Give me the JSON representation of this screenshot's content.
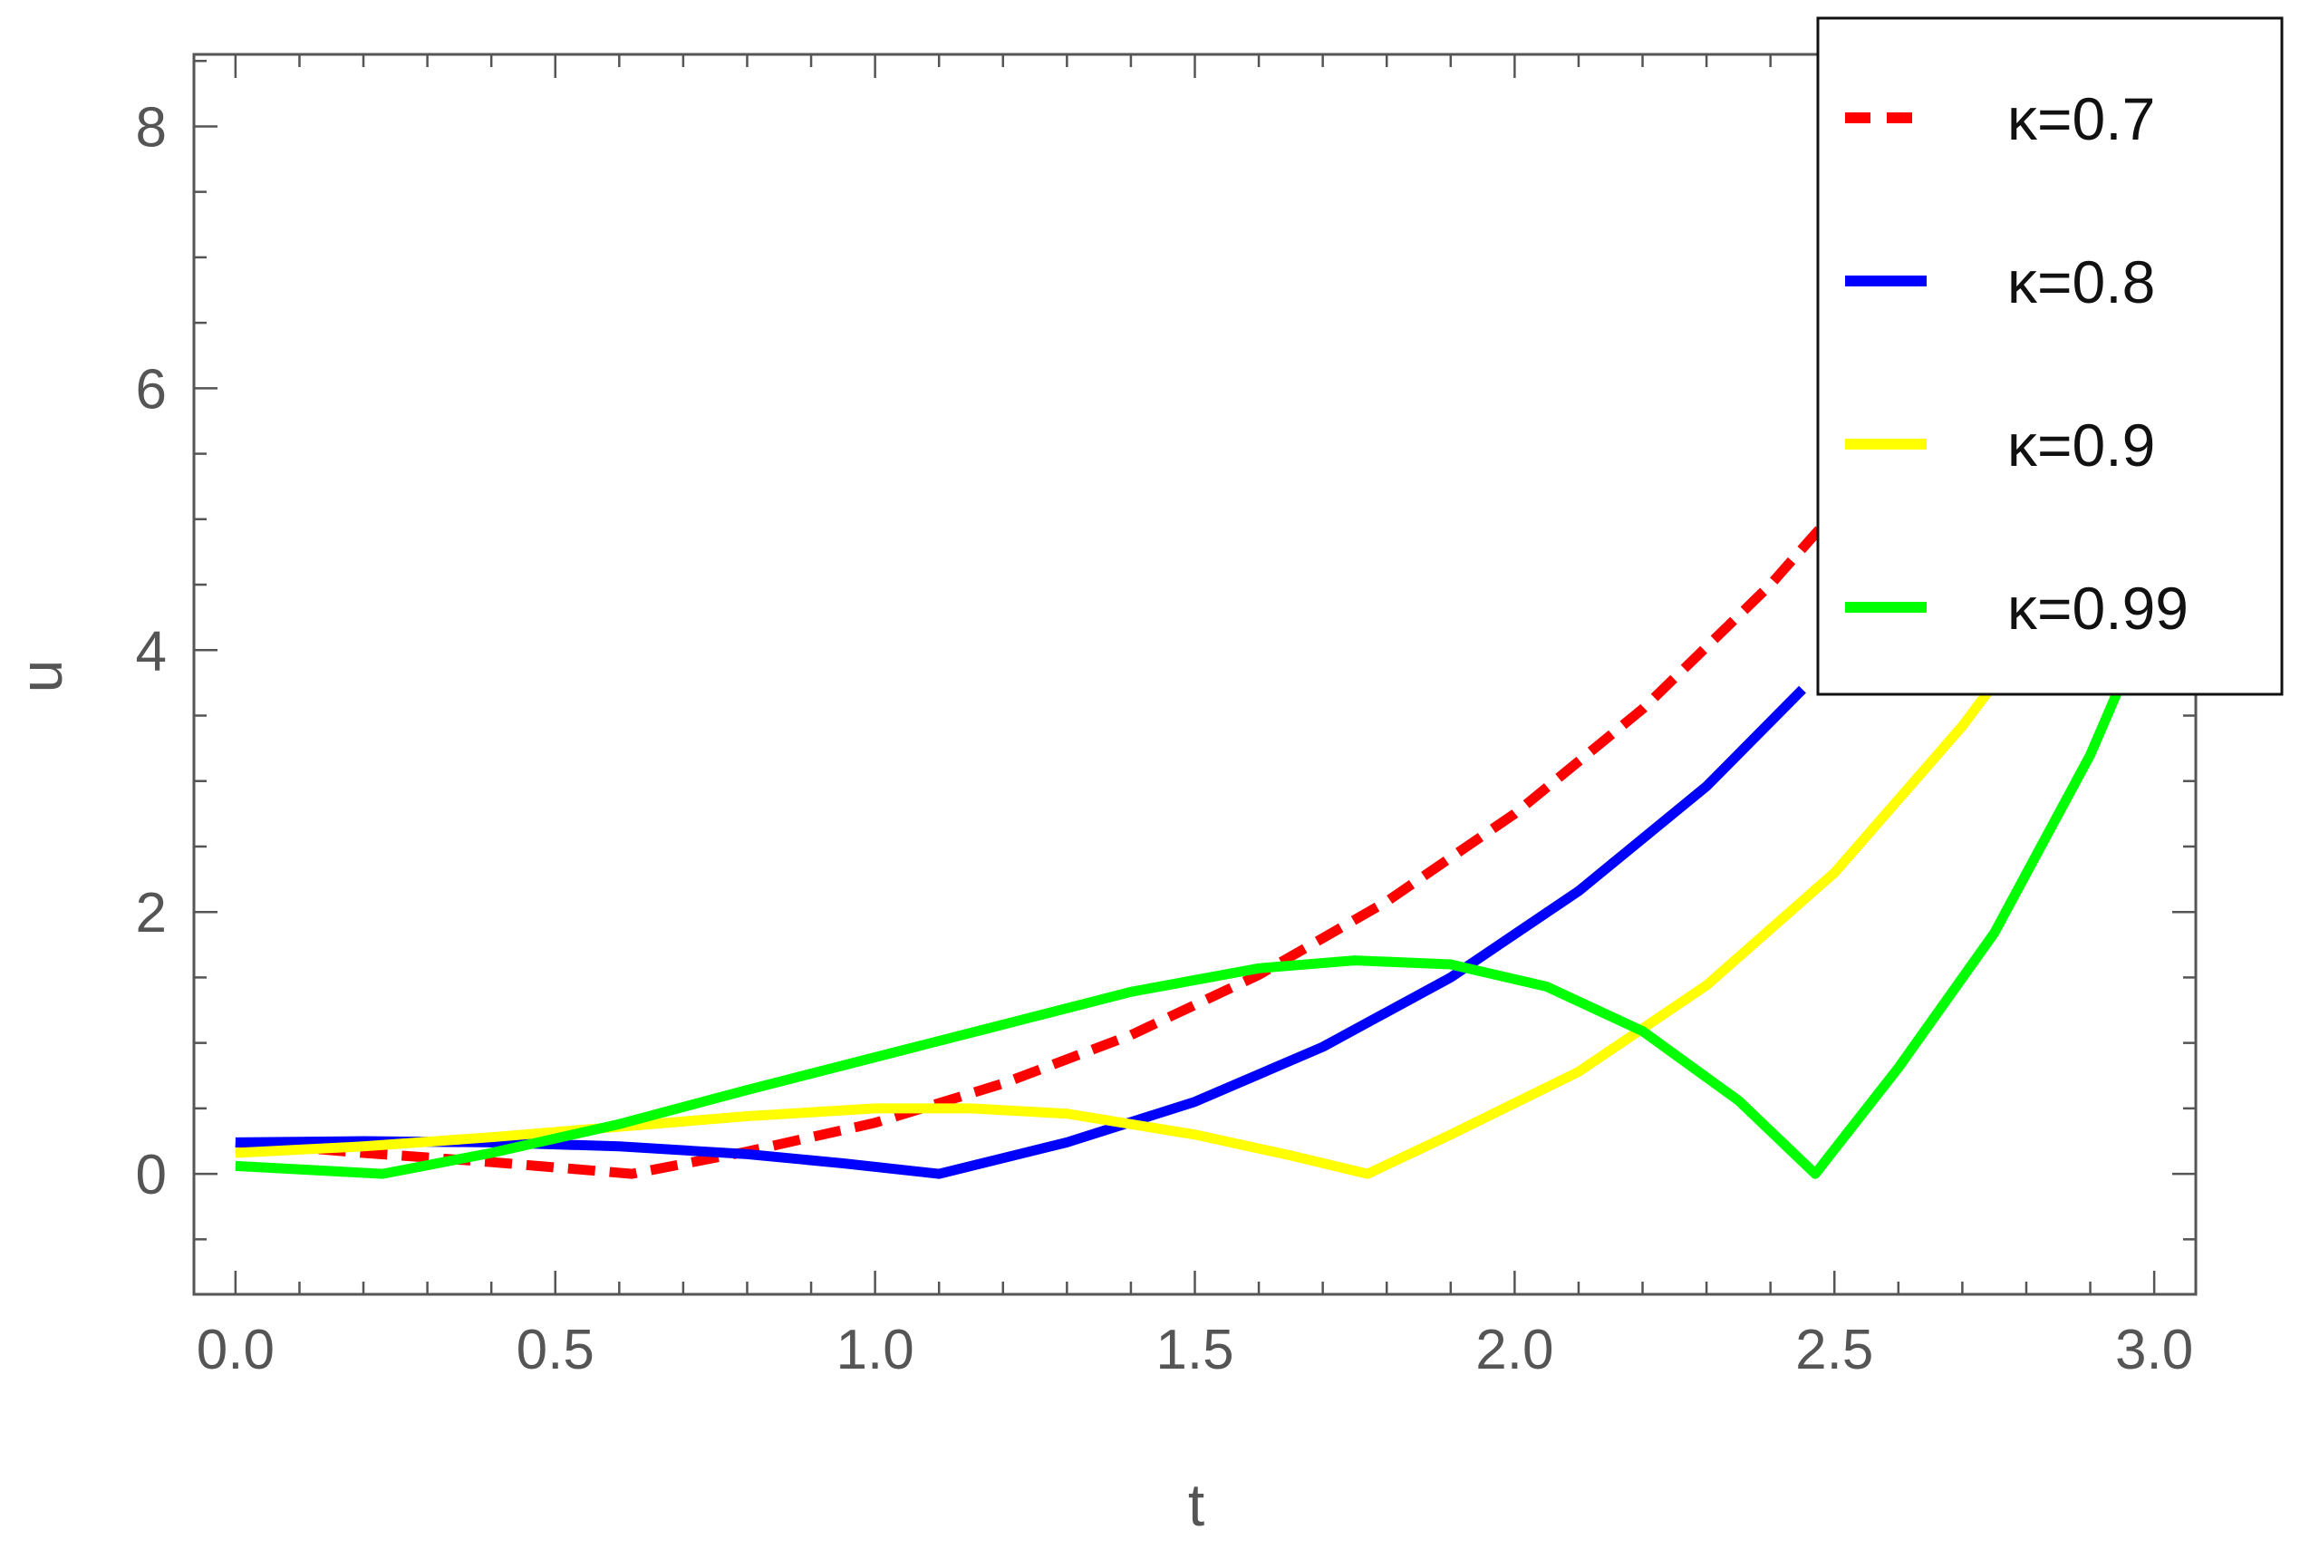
{
  "chart_data": {
    "type": "line",
    "xlabel": "t",
    "ylabel": "u",
    "xlim": [
      -0.065,
      3.065
    ],
    "ylim": [
      -0.92,
      8.55
    ],
    "x_ticks": [
      0.0,
      0.5,
      1.0,
      1.5,
      2.0,
      2.5,
      3.0
    ],
    "x_tick_labels": [
      "0.0",
      "0.5",
      "1.0",
      "1.5",
      "2.0",
      "2.5",
      "3.0"
    ],
    "y_ticks": [
      0,
      2,
      4,
      6,
      8
    ],
    "y_tick_labels": [
      "0",
      "2",
      "4",
      "6",
      "8"
    ],
    "grid": false,
    "legend_position": "top-right",
    "series": [
      {
        "name": "κ=0.7",
        "color": "#ff0000",
        "style": "dashed",
        "x": [
          0.0,
          0.2,
          0.4,
          0.62,
          0.8,
          1.0,
          1.2,
          1.4,
          1.6,
          1.8,
          2.0,
          2.2,
          2.4,
          2.55
        ],
        "y": [
          0.24,
          0.16,
          0.09,
          0.0,
          0.17,
          0.39,
          0.69,
          1.06,
          1.52,
          2.08,
          2.75,
          3.55,
          4.5,
          5.33
        ]
      },
      {
        "name": "κ=0.8",
        "color": "#0000ff",
        "style": "solid",
        "x": [
          0.0,
          0.2,
          0.4,
          0.6,
          0.8,
          0.95,
          1.1,
          1.3,
          1.5,
          1.7,
          1.9,
          2.1,
          2.3,
          2.45
        ],
        "y": [
          0.24,
          0.25,
          0.24,
          0.21,
          0.15,
          0.08,
          0.0,
          0.24,
          0.55,
          0.97,
          1.5,
          2.16,
          2.96,
          3.7
        ]
      },
      {
        "name": "κ=0.9",
        "color": "#ffff00",
        "style": "solid",
        "x": [
          0.0,
          0.2,
          0.4,
          0.6,
          0.8,
          1.0,
          1.15,
          1.3,
          1.5,
          1.65,
          1.77,
          1.9,
          2.1,
          2.3,
          2.5,
          2.7,
          2.85
        ],
        "y": [
          0.16,
          0.21,
          0.28,
          0.36,
          0.44,
          0.5,
          0.5,
          0.46,
          0.3,
          0.14,
          0.0,
          0.3,
          0.78,
          1.44,
          2.3,
          3.42,
          4.4
        ]
      },
      {
        "name": "κ=0.99",
        "color": "#00ff00",
        "style": "solid",
        "x": [
          0.0,
          0.23,
          0.4,
          0.6,
          0.8,
          1.0,
          1.2,
          1.4,
          1.6,
          1.75,
          1.9,
          2.05,
          2.2,
          2.35,
          2.47,
          2.6,
          2.75,
          2.9,
          2.96
        ],
        "y": [
          0.06,
          0.0,
          0.16,
          0.38,
          0.64,
          0.89,
          1.14,
          1.39,
          1.57,
          1.63,
          1.6,
          1.43,
          1.09,
          0.56,
          0.0,
          0.81,
          1.84,
          3.2,
          3.88
        ]
      }
    ]
  }
}
